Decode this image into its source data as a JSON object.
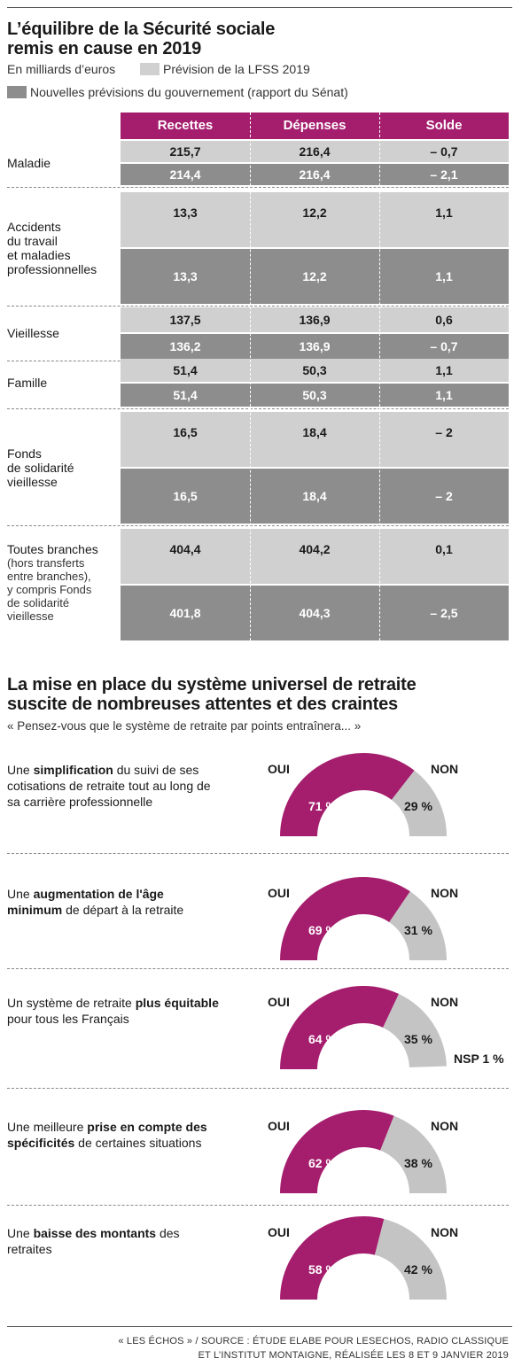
{
  "header": {
    "title_line1": "L’équilibre de la Sécurité sociale",
    "title_line2": "remis en cause en 2019",
    "unit": "En milliards d’euros",
    "legend_light": "Prévision de la LFSS 2019",
    "legend_dark": "Nouvelles prévisions du gouvernement (rapport du Sénat)"
  },
  "colors": {
    "accent": "#a51e6e",
    "light": "#d0d0d0",
    "dark": "#8d8d8d",
    "gauge_other": "#c4c4c4"
  },
  "table": {
    "columns": [
      "Recettes",
      "Dépenses",
      "Solde"
    ],
    "rows": [
      {
        "label": [
          "Maladie"
        ],
        "sub": [],
        "lfss": [
          "215,7",
          "216,4",
          "– 0,7"
        ],
        "senat": [
          "214,4",
          "216,4",
          "– 2,1"
        ]
      },
      {
        "label": [
          "Accidents",
          "du travail",
          "et maladies",
          "professionnelles"
        ],
        "sub": [],
        "lfss": [
          "13,3",
          "12,2",
          "1,1"
        ],
        "senat": [
          "13,3",
          "12,2",
          "1,1"
        ]
      },
      {
        "label": [
          "Vieillesse"
        ],
        "sub": [],
        "lfss": [
          "137,5",
          "136,9",
          "0,6"
        ],
        "senat": [
          "136,2",
          "136,9",
          "– 0,7"
        ]
      },
      {
        "label": [
          "Famille"
        ],
        "sub": [],
        "lfss": [
          "51,4",
          "50,3",
          "1,1"
        ],
        "senat": [
          "51,4",
          "50,3",
          "1,1"
        ]
      },
      {
        "label": [
          "Fonds",
          "de solidarité",
          "vieillesse"
        ],
        "sub": [],
        "lfss": [
          "16,5",
          "18,4",
          "– 2"
        ],
        "senat": [
          "16,5",
          "18,4",
          "– 2"
        ]
      },
      {
        "label": [
          "Toutes branches"
        ],
        "sub": [
          "(hors transferts",
          "entre branches),",
          "y compris Fonds",
          "de solidarité",
          "vieillesse"
        ],
        "lfss": [
          "404,4",
          "404,2",
          "0,1"
        ],
        "senat": [
          "401,8",
          "404,3",
          "– 2,5"
        ]
      }
    ]
  },
  "survey": {
    "title_line1": "La mise en place du système universel de retraite",
    "title_line2": "suscite de nombreuses attentes et des craintes",
    "question": "« Pensez-vous que le système de retraite par points entraînera... »",
    "oui_label": "OUI",
    "non_label": "NON"
  },
  "chart_data": {
    "type": "pie",
    "unit": "%",
    "items": [
      {
        "label_parts": [
          [
            "Une ",
            false
          ],
          [
            "simplification",
            true
          ],
          [
            " du suivi de ses cotisations de retraite tout au long de sa carrière professionnelle",
            false
          ]
        ],
        "oui": 71,
        "non": 29,
        "nsp": null,
        "oui_text": "71 %",
        "non_text": "29 %",
        "nsp_text": ""
      },
      {
        "label_parts": [
          [
            "Une ",
            false
          ],
          [
            "augmentation de l'âge minimum",
            true
          ],
          [
            " de départ à la retraite",
            false
          ]
        ],
        "oui": 69,
        "non": 31,
        "nsp": null,
        "oui_text": "69 %",
        "non_text": "31 %",
        "nsp_text": ""
      },
      {
        "label_parts": [
          [
            "Un système de retraite ",
            false
          ],
          [
            "plus équitable",
            true
          ],
          [
            " pour tous les Français",
            false
          ]
        ],
        "oui": 64,
        "non": 35,
        "nsp": 1,
        "oui_text": "64 %",
        "non_text": "35 %",
        "nsp_text": "NSP 1 %"
      },
      {
        "label_parts": [
          [
            "Une meilleure ",
            false
          ],
          [
            "prise en compte des spécificités",
            true
          ],
          [
            " de certaines situations",
            false
          ]
        ],
        "oui": 62,
        "non": 38,
        "nsp": null,
        "oui_text": "62 %",
        "non_text": "38 %",
        "nsp_text": ""
      },
      {
        "label_parts": [
          [
            "Une ",
            false
          ],
          [
            "baisse des montants",
            true
          ],
          [
            " des retraites",
            false
          ]
        ],
        "oui": 58,
        "non": 42,
        "nsp": null,
        "oui_text": "58 %",
        "non_text": "42 %",
        "nsp_text": ""
      }
    ]
  },
  "footer": {
    "source_line1": "« LES ÉCHOS » / SOURCE : ÉTUDE ELABE POUR LESECHOS, RADIO CLASSIQUE",
    "source_line2": "ET L’INSTITUT MONTAIGNE, RÉALISÉE LES 8 ET 9 JANVIER 2019"
  }
}
